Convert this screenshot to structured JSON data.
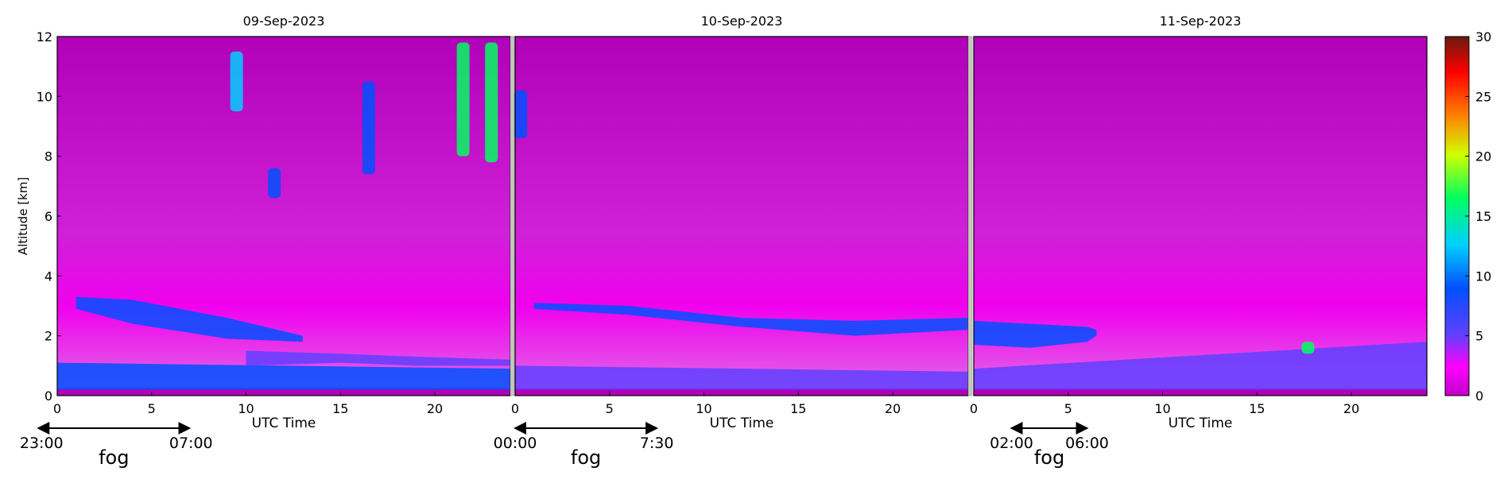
{
  "chart_data": {
    "type": "heatmap",
    "ylabel": "Altitude [km]",
    "ylim": [
      0,
      12
    ],
    "yticks": [
      0,
      2,
      4,
      6,
      8,
      10,
      12
    ],
    "xlim": [
      0,
      24
    ],
    "xticks": [
      0,
      5,
      10,
      15,
      20
    ],
    "colorbar": {
      "range": [
        0,
        30
      ],
      "ticks": [
        0,
        5,
        10,
        15,
        20,
        25,
        30
      ],
      "colormap": "jet-magenta"
    },
    "panels": [
      {
        "title": "09-Sep-2023",
        "xlabel": "UTC Time",
        "fog": {
          "start_label": "23:00",
          "end_label": "07:00",
          "start": -1,
          "end": 7,
          "label": "fog"
        },
        "features": [
          {
            "kind": "band",
            "x": [
              0,
              24
            ],
            "y0": [
              0.2,
              0.2
            ],
            "y1": [
              1.1,
              0.9
            ],
            "value": 6
          },
          {
            "kind": "band",
            "x": [
              1,
              4,
              9,
              13
            ],
            "y0": [
              2.9,
              2.4,
              1.9,
              1.8
            ],
            "y1": [
              3.3,
              3.2,
              2.6,
              2.0
            ],
            "value": 6
          },
          {
            "kind": "band",
            "x": [
              10,
              15,
              19,
              24
            ],
            "y0": [
              1.0,
              1.1,
              1.0,
              1.0
            ],
            "y1": [
              1.5,
              1.4,
              1.3,
              1.2
            ],
            "value": 5
          },
          {
            "kind": "streak",
            "x": 9.5,
            "y": [
              9.5,
              11.5
            ],
            "value": 10
          },
          {
            "kind": "streak",
            "x": 11.5,
            "y": [
              6.6,
              7.6
            ],
            "value": 8
          },
          {
            "kind": "streak",
            "x": 16.5,
            "y": [
              7.4,
              10.5
            ],
            "value": 7
          },
          {
            "kind": "streak",
            "x": 21.5,
            "y": [
              8.0,
              11.8
            ],
            "value": 14
          },
          {
            "kind": "streak",
            "x": 23.0,
            "y": [
              7.8,
              11.8
            ],
            "value": 16
          }
        ]
      },
      {
        "title": "10-Sep-2023",
        "xlabel": "UTC Time",
        "fog": {
          "start_label": "00:00",
          "end_label": "7:30",
          "start": 0,
          "end": 7.5,
          "label": "fog"
        },
        "features": [
          {
            "kind": "band",
            "x": [
              0,
              24
            ],
            "y0": [
              0.2,
              0.2
            ],
            "y1": [
              1.0,
              0.8
            ],
            "value": 5
          },
          {
            "kind": "band",
            "x": [
              1,
              6,
              12,
              18,
              24
            ],
            "y0": [
              2.9,
              2.7,
              2.3,
              2.0,
              2.2
            ],
            "y1": [
              3.1,
              3.0,
              2.6,
              2.5,
              2.6
            ],
            "value": 7
          },
          {
            "kind": "streak",
            "x": 0.3,
            "y": [
              8.6,
              10.2
            ],
            "value": 8
          }
        ]
      },
      {
        "title": "11-Sep-2023",
        "xlabel": "UTC Time",
        "fog": {
          "start_label": "02:00",
          "end_label": "06:00",
          "start": 2,
          "end": 6,
          "label": "fog"
        },
        "features": [
          {
            "kind": "band",
            "x": [
              0,
              24
            ],
            "y0": [
              0.2,
              0.2
            ],
            "y1": [
              0.9,
              1.8
            ],
            "value": 5
          },
          {
            "kind": "band",
            "x": [
              0,
              3,
              6,
              6.5
            ],
            "y0": [
              1.7,
              1.6,
              1.8,
              2.0
            ],
            "y1": [
              2.5,
              2.4,
              2.3,
              2.2
            ],
            "value": 9
          },
          {
            "kind": "streak",
            "x": 17.7,
            "y": [
              1.4,
              1.8
            ],
            "value": 14
          }
        ]
      }
    ]
  }
}
